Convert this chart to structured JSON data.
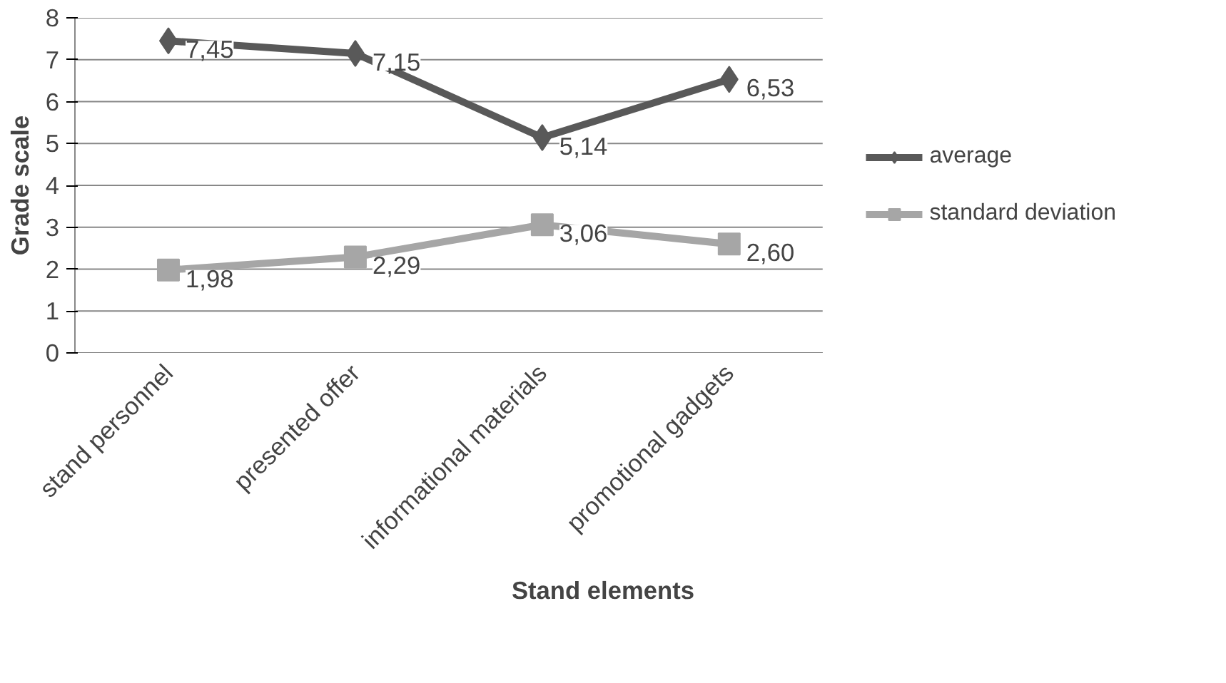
{
  "chart_data": {
    "type": "line",
    "xlabel": "Stand elements",
    "ylabel": "Grade scale",
    "categories": [
      "stand personnel",
      "presented offer",
      "informational materials",
      "promotional gadgets"
    ],
    "series": [
      {
        "name": "average",
        "color": "#595959",
        "marker": "diamond",
        "values": [
          7.45,
          7.15,
          5.14,
          6.53
        ],
        "value_labels": [
          "7,45",
          "7,15",
          "5,14",
          "6,53"
        ]
      },
      {
        "name": "standard deviation",
        "color": "#a6a6a6",
        "marker": "square",
        "values": [
          1.98,
          2.29,
          3.06,
          2.6
        ],
        "value_labels": [
          "1,98",
          "2,29",
          "3,06",
          "2,60"
        ]
      }
    ],
    "ylim": [
      0,
      8
    ],
    "yticks": [
      0,
      1,
      2,
      3,
      4,
      5,
      6,
      7,
      8
    ],
    "grid": "y",
    "legend": "right"
  }
}
